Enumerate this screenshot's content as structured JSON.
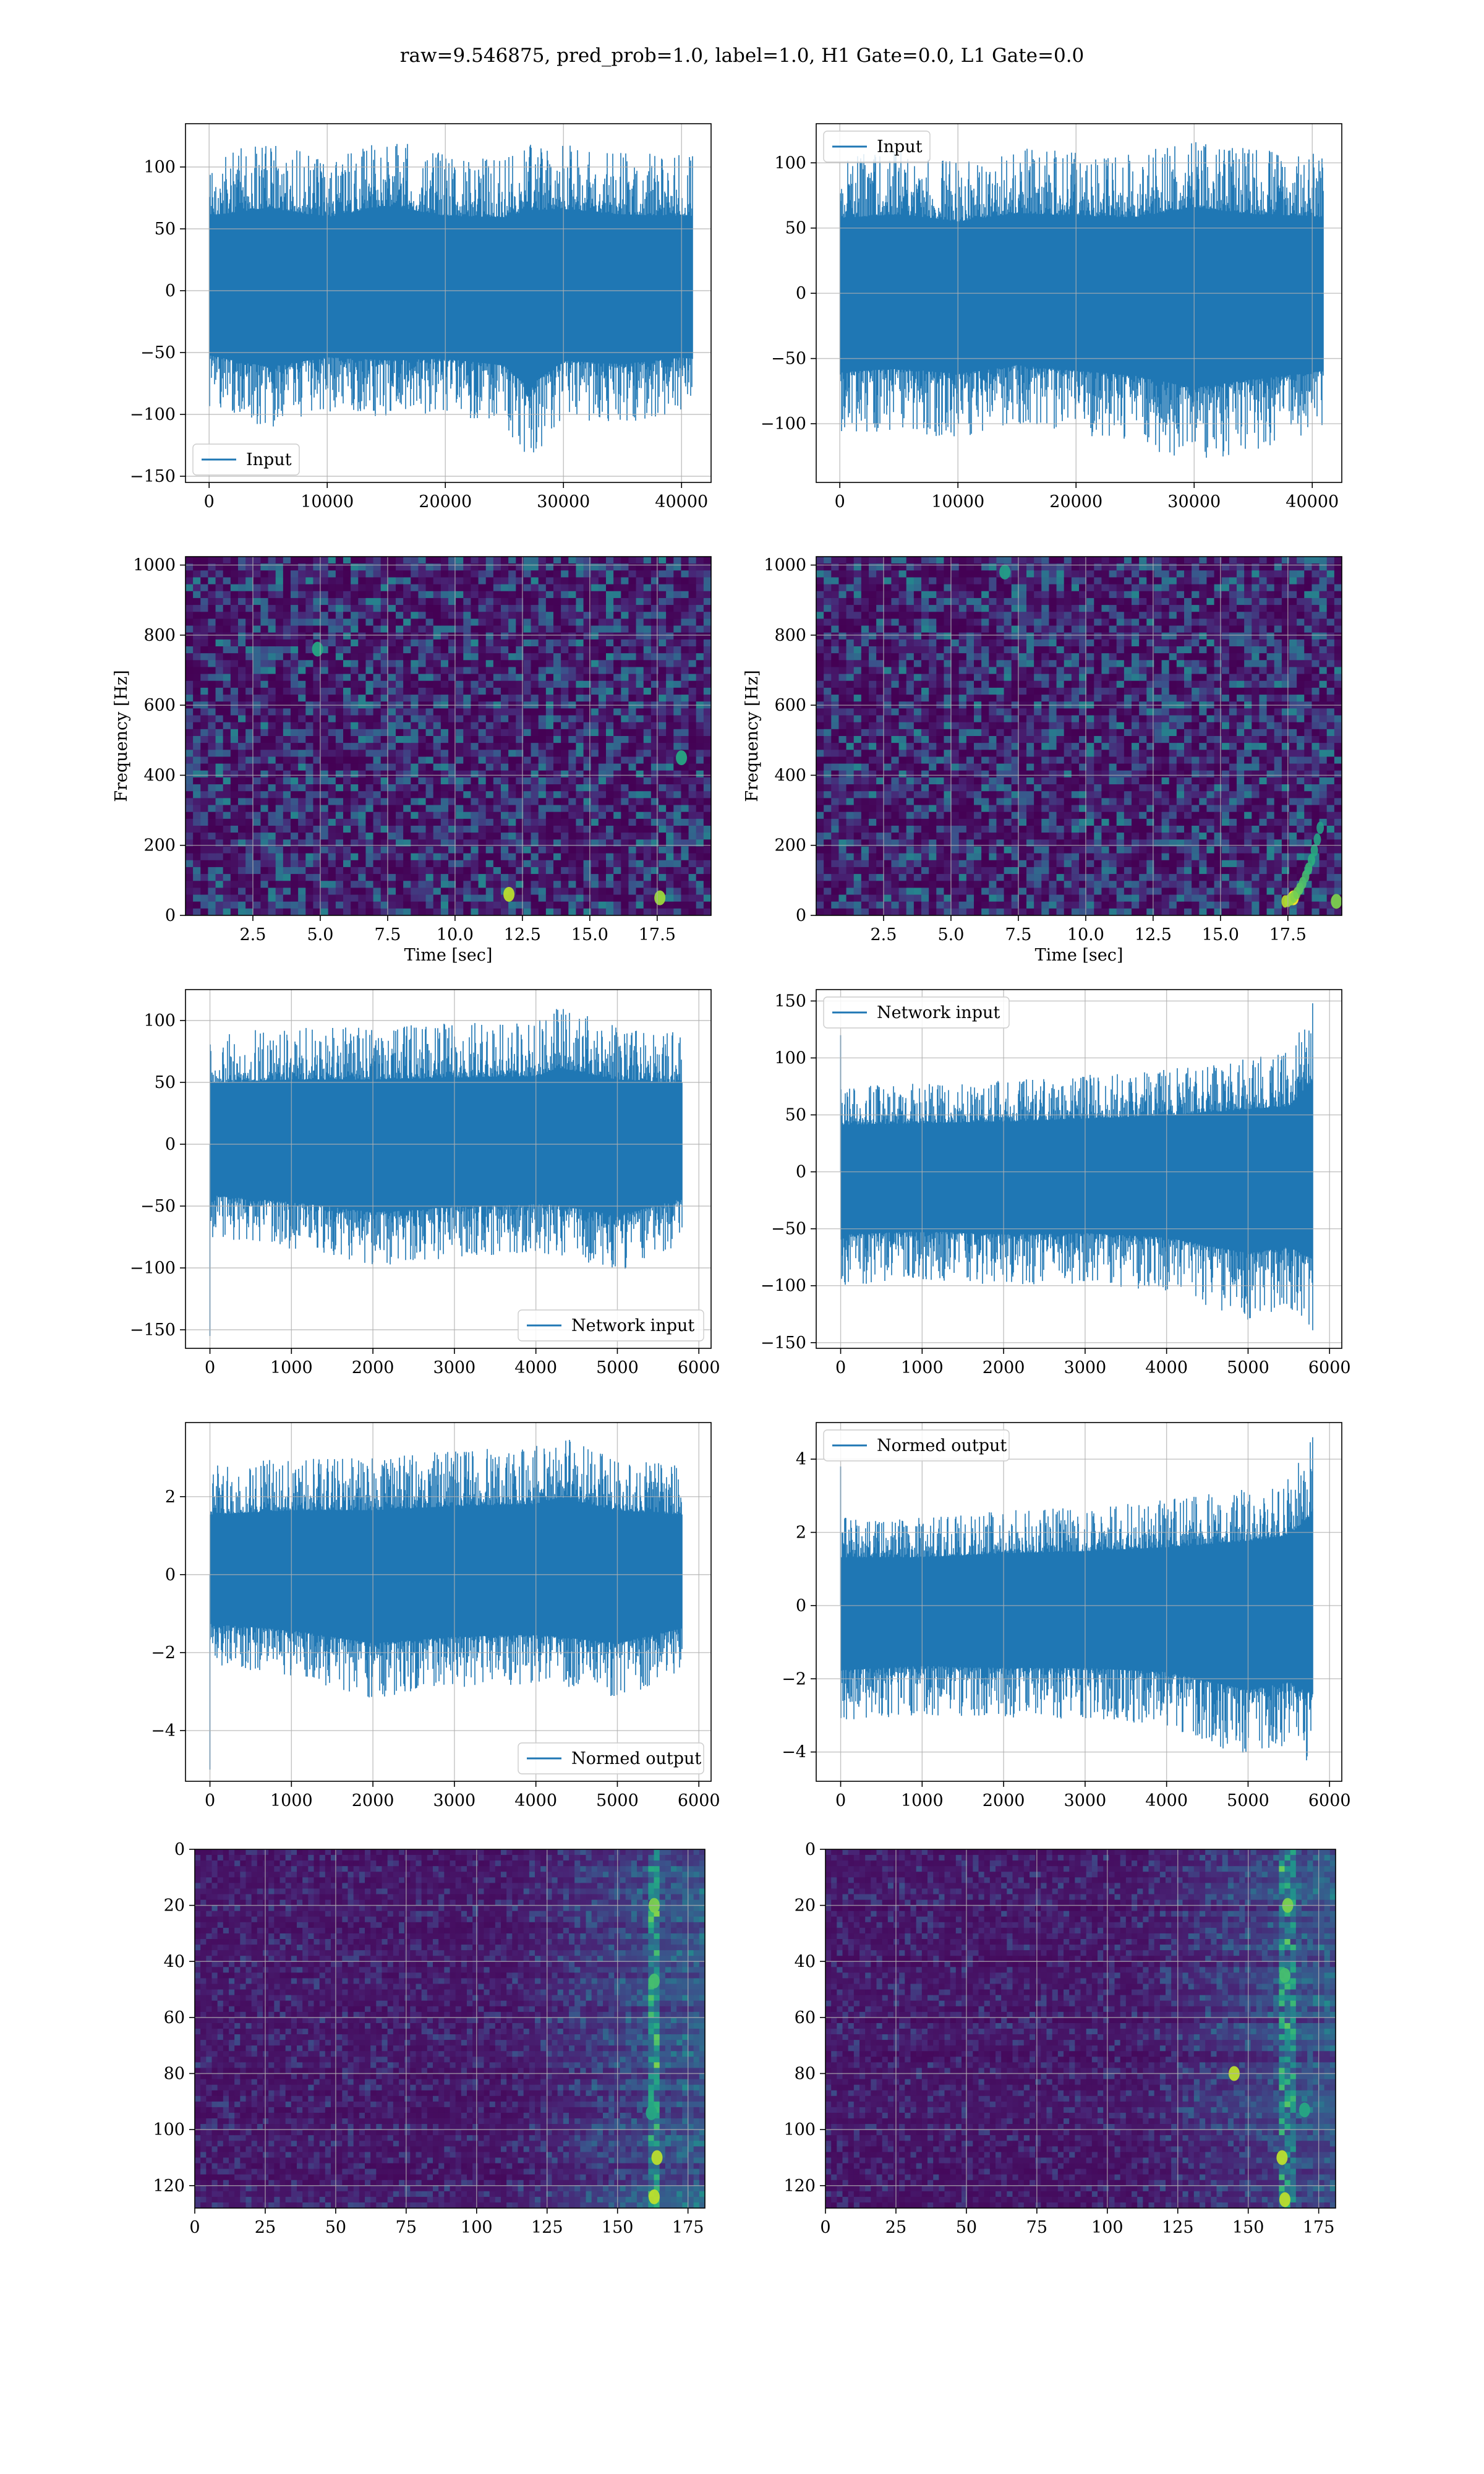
{
  "figure": {
    "suptitle": "raw=9.546875, pred_prob=1.0, label=1.0, H1 Gate=0.0, L1 Gate=0.0",
    "colors": {
      "series": "#1f77b4",
      "grid": "#b0b0b0",
      "heat_low": "#440154",
      "heat_high": "#fde725"
    }
  },
  "chart_data": [
    {
      "id": "r1c1",
      "type": "line",
      "title": "",
      "xlabel": "",
      "ylabel": "",
      "legend": {
        "label": "Input",
        "loc": "lower-left"
      },
      "xlim": [
        -2000,
        42500
      ],
      "ylim": [
        -155,
        135
      ],
      "xticks": [
        0,
        10000,
        20000,
        30000,
        40000
      ],
      "xticklabels": [
        "0",
        "10000",
        "20000",
        "30000",
        "40000"
      ],
      "yticks": [
        -150,
        -100,
        -50,
        0,
        50,
        100
      ],
      "yticklabels": [
        "−150",
        "−100",
        "−50",
        "0",
        "50",
        "100"
      ],
      "n_samples": 40960,
      "envelope": {
        "x": [
          0,
          5000,
          10000,
          15000,
          20000,
          25000,
          27000,
          30000,
          35000,
          40000,
          40960
        ],
        "max": [
          110,
          122,
          108,
          125,
          110,
          108,
          118,
          120,
          112,
          110,
          110
        ],
        "min": [
          -95,
          -112,
          -98,
          -102,
          -100,
          -110,
          -142,
          -103,
          -108,
          -98,
          -100
        ]
      }
    },
    {
      "id": "r1c2",
      "type": "line",
      "title": "",
      "xlabel": "",
      "ylabel": "",
      "legend": {
        "label": "Input",
        "loc": "upper-left"
      },
      "xlim": [
        -2000,
        42500
      ],
      "ylim": [
        -145,
        130
      ],
      "xticks": [
        0,
        10000,
        20000,
        30000,
        40000
      ],
      "xticklabels": [
        "0",
        "10000",
        "20000",
        "30000",
        "40000"
      ],
      "yticks": [
        -100,
        -50,
        0,
        50,
        100
      ],
      "yticklabels": [
        "−100",
        "−50",
        "0",
        "50",
        "100"
      ],
      "n_samples": 40960,
      "envelope": {
        "x": [
          0,
          5000,
          10000,
          15000,
          20000,
          25000,
          30000,
          35000,
          40000,
          40960
        ],
        "max": [
          105,
          110,
          100,
          112,
          108,
          106,
          120,
          110,
          108,
          105
        ],
        "min": [
          -110,
          -105,
          -112,
          -100,
          -108,
          -115,
          -132,
          -120,
          -110,
          -108
        ]
      }
    },
    {
      "id": "r2c1",
      "type": "heatmap",
      "title": "",
      "xlabel": "Time [sec]",
      "ylabel": "Frequency [Hz]",
      "xlim": [
        0,
        19.5
      ],
      "ylim": [
        0,
        1024
      ],
      "xticks": [
        2.5,
        5.0,
        7.5,
        10.0,
        12.5,
        15.0,
        17.5
      ],
      "xticklabels": [
        "2.5",
        "5.0",
        "7.5",
        "10.0",
        "12.5",
        "15.0",
        "17.5"
      ],
      "yticks": [
        0,
        200,
        400,
        600,
        800,
        1000
      ],
      "yticklabels": [
        "0",
        "200",
        "400",
        "600",
        "800",
        "1000"
      ],
      "colormap": "viridis",
      "hotspots": [
        {
          "t": 12.0,
          "f": 60,
          "intensity": 0.9
        },
        {
          "t": 17.6,
          "f": 50,
          "intensity": 0.85
        },
        {
          "t": 18.4,
          "f": 450,
          "intensity": 0.6
        },
        {
          "t": 4.9,
          "f": 760,
          "intensity": 0.6
        }
      ]
    },
    {
      "id": "r2c2",
      "type": "heatmap",
      "title": "",
      "xlabel": "Time [sec]",
      "ylabel": "Frequency [Hz]",
      "xlim": [
        0,
        19.5
      ],
      "ylim": [
        0,
        1024
      ],
      "xticks": [
        2.5,
        5.0,
        7.5,
        10.0,
        12.5,
        15.0,
        17.5
      ],
      "xticklabels": [
        "2.5",
        "5.0",
        "7.5",
        "10.0",
        "12.5",
        "15.0",
        "17.5"
      ],
      "yticks": [
        0,
        200,
        400,
        600,
        800,
        1000
      ],
      "yticklabels": [
        "0",
        "200",
        "400",
        "600",
        "800",
        "1000"
      ],
      "colormap": "viridis",
      "chirp": {
        "t_start": 17.4,
        "f_start": 40,
        "t_end": 18.7,
        "f_end": 250
      },
      "hotspots": [
        {
          "t": 17.7,
          "f": 50,
          "intensity": 1.0
        },
        {
          "t": 19.3,
          "f": 40,
          "intensity": 0.8
        },
        {
          "t": 7.0,
          "f": 980,
          "intensity": 0.55
        }
      ]
    },
    {
      "id": "r3c1",
      "type": "line",
      "title": "",
      "xlabel": "",
      "ylabel": "",
      "legend": {
        "label": "Network input",
        "loc": "lower-right"
      },
      "xlim": [
        -300,
        6150
      ],
      "ylim": [
        -165,
        125
      ],
      "xticks": [
        0,
        1000,
        2000,
        3000,
        4000,
        5000,
        6000
      ],
      "xticklabels": [
        "0",
        "1000",
        "2000",
        "3000",
        "4000",
        "5000",
        "6000"
      ],
      "yticks": [
        -150,
        -100,
        -50,
        0,
        50,
        100
      ],
      "yticklabels": [
        "−150",
        "−100",
        "−50",
        "0",
        "50",
        "100"
      ],
      "n_samples": 5800,
      "start_spike": -155,
      "envelope": {
        "x": [
          0,
          1000,
          2000,
          3000,
          4000,
          4300,
          5000,
          5800
        ],
        "max": [
          90,
          95,
          95,
          98,
          100,
          112,
          95,
          90
        ],
        "min": [
          -75,
          -85,
          -100,
          -92,
          -88,
          -90,
          -105,
          -80
        ]
      }
    },
    {
      "id": "r3c2",
      "type": "line",
      "title": "",
      "xlabel": "",
      "ylabel": "",
      "legend": {
        "label": "Network input",
        "loc": "upper-left"
      },
      "xlim": [
        -300,
        6150
      ],
      "ylim": [
        -155,
        160
      ],
      "xticks": [
        0,
        1000,
        2000,
        3000,
        4000,
        5000,
        6000
      ],
      "xticklabels": [
        "0",
        "1000",
        "2000",
        "3000",
        "4000",
        "5000",
        "6000"
      ],
      "yticks": [
        -150,
        -100,
        -50,
        0,
        50,
        100,
        150
      ],
      "yticklabels": [
        "−150",
        "−100",
        "−50",
        "0",
        "50",
        "100",
        "150"
      ],
      "n_samples": 5800,
      "start_spike": 120,
      "end_spike": 148,
      "envelope": {
        "x": [
          0,
          1000,
          2000,
          3000,
          4000,
          5000,
          5500,
          5800
        ],
        "max": [
          75,
          78,
          80,
          85,
          90,
          100,
          105,
          148
        ],
        "min": [
          -100,
          -95,
          -100,
          -98,
          -105,
          -130,
          -120,
          -140
        ]
      }
    },
    {
      "id": "r4c1",
      "type": "line",
      "title": "",
      "xlabel": "",
      "ylabel": "",
      "legend": {
        "label": "Normed output",
        "loc": "lower-right"
      },
      "xlim": [
        -300,
        6150
      ],
      "ylim": [
        -5.3,
        3.9
      ],
      "xticks": [
        0,
        1000,
        2000,
        3000,
        4000,
        5000,
        6000
      ],
      "xticklabels": [
        "0",
        "1000",
        "2000",
        "3000",
        "4000",
        "5000",
        "6000"
      ],
      "yticks": [
        -4,
        -2,
        0,
        2
      ],
      "yticklabels": [
        "−4",
        "−2",
        "0",
        "2"
      ],
      "n_samples": 5800,
      "start_spike": -5.0,
      "envelope": {
        "x": [
          0,
          1000,
          2000,
          3000,
          4000,
          4300,
          5000,
          5800
        ],
        "max": [
          2.8,
          3.0,
          3.0,
          3.2,
          3.3,
          3.6,
          3.0,
          2.8
        ],
        "min": [
          -2.3,
          -2.6,
          -3.2,
          -2.9,
          -2.8,
          -2.9,
          -3.2,
          -2.5
        ]
      }
    },
    {
      "id": "r4c2",
      "type": "line",
      "title": "",
      "xlabel": "",
      "ylabel": "",
      "legend": {
        "label": "Normed output",
        "loc": "upper-left"
      },
      "xlim": [
        -300,
        6150
      ],
      "ylim": [
        -4.8,
        5.0
      ],
      "xticks": [
        0,
        1000,
        2000,
        3000,
        4000,
        5000,
        6000
      ],
      "xticklabels": [
        "0",
        "1000",
        "2000",
        "3000",
        "4000",
        "5000",
        "6000"
      ],
      "yticks": [
        -4,
        -2,
        0,
        2,
        4
      ],
      "yticklabels": [
        "−4",
        "−2",
        "0",
        "2",
        "4"
      ],
      "n_samples": 5800,
      "start_spike": 3.8,
      "end_spike": 4.6,
      "envelope": {
        "x": [
          0,
          1000,
          2000,
          3000,
          4000,
          5000,
          5500,
          5800
        ],
        "max": [
          2.4,
          2.4,
          2.6,
          2.7,
          2.9,
          3.2,
          3.5,
          4.6
        ],
        "min": [
          -3.2,
          -3.0,
          -3.1,
          -3.1,
          -3.3,
          -4.2,
          -3.8,
          -4.4
        ]
      }
    },
    {
      "id": "r5c1",
      "type": "heatmap",
      "title": "",
      "xlabel": "",
      "ylabel": "",
      "xlim": [
        0,
        181
      ],
      "ylim": [
        128,
        0
      ],
      "xticks": [
        0,
        25,
        50,
        75,
        100,
        125,
        150,
        175
      ],
      "xticklabels": [
        "0",
        "25",
        "50",
        "75",
        "100",
        "125",
        "150",
        "175"
      ],
      "yticks": [
        0,
        20,
        40,
        60,
        80,
        100,
        120
      ],
      "yticklabels": [
        "0",
        "20",
        "40",
        "60",
        "80",
        "100",
        "120"
      ],
      "colormap": "viridis",
      "bright_columns": [
        160,
        161,
        162,
        163,
        164,
        165
      ],
      "hotspots": [
        {
          "x": 163,
          "y": 20,
          "intensity": 0.8
        },
        {
          "x": 163,
          "y": 47,
          "intensity": 0.7
        },
        {
          "x": 164,
          "y": 110,
          "intensity": 0.9
        },
        {
          "x": 163,
          "y": 124,
          "intensity": 0.9
        },
        {
          "x": 162,
          "y": 94,
          "intensity": 0.6
        }
      ]
    },
    {
      "id": "r5c2",
      "type": "heatmap",
      "title": "",
      "xlabel": "",
      "ylabel": "",
      "xlim": [
        0,
        181
      ],
      "ylim": [
        128,
        0
      ],
      "xticks": [
        0,
        25,
        50,
        75,
        100,
        125,
        150,
        175
      ],
      "xticklabels": [
        "0",
        "25",
        "50",
        "75",
        "100",
        "125",
        "150",
        "175"
      ],
      "yticks": [
        0,
        20,
        40,
        60,
        80,
        100,
        120
      ],
      "yticklabels": [
        "0",
        "20",
        "40",
        "60",
        "80",
        "100",
        "120"
      ],
      "colormap": "viridis",
      "bright_columns": [
        161,
        162,
        163,
        164,
        165,
        166
      ],
      "hotspots": [
        {
          "x": 145,
          "y": 80,
          "intensity": 0.9
        },
        {
          "x": 164,
          "y": 20,
          "intensity": 0.8
        },
        {
          "x": 163,
          "y": 45,
          "intensity": 0.7
        },
        {
          "x": 162,
          "y": 110,
          "intensity": 0.9
        },
        {
          "x": 163,
          "y": 125,
          "intensity": 0.9
        },
        {
          "x": 170,
          "y": 93,
          "intensity": 0.6
        }
      ]
    }
  ]
}
